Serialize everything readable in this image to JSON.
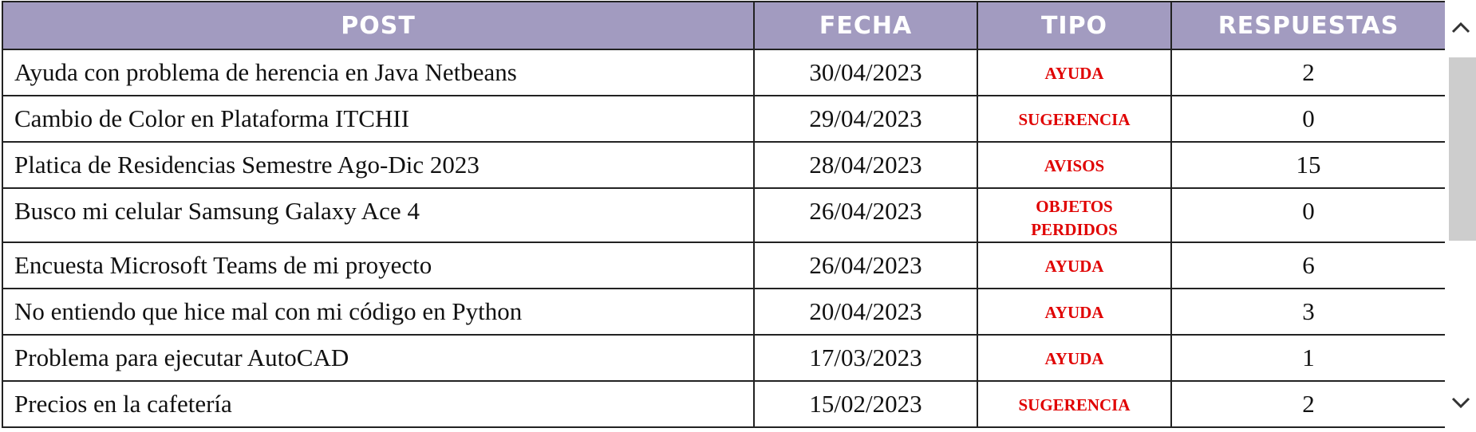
{
  "table": {
    "header": [
      "POST",
      "FECHA",
      "TIPO",
      "RESPUESTAS"
    ],
    "rows": [
      [
        "Ayuda con problema de herencia en Java Netbeans",
        "30/04/2023",
        "AYUDA",
        2
      ],
      [
        "Cambio de Color en Plataforma ITCHII",
        "29/04/2023",
        "SUGERENCIA",
        0
      ],
      [
        "Platica de Residencias Semestre Ago-Dic 2023",
        "28/04/2023",
        "AVISOS",
        15
      ],
      [
        "Busco mi celular Samsung Galaxy Ace 4",
        "26/04/2023",
        "OBJETOS PERDIDOS",
        0
      ],
      [
        "Encuesta Microsoft Teams de mi proyecto",
        "26/04/2023",
        "AYUDA",
        6
      ],
      [
        "No entiendo que hice mal con mi código en Python",
        "20/04/2023",
        "AYUDA",
        3
      ],
      [
        "Problema para ejecutar AutoCAD",
        "17/03/2023",
        "AYUDA",
        1
      ],
      [
        "Precios en la cafetería",
        "15/02/2023",
        "SUGERENCIA",
        2
      ]
    ]
  }
}
